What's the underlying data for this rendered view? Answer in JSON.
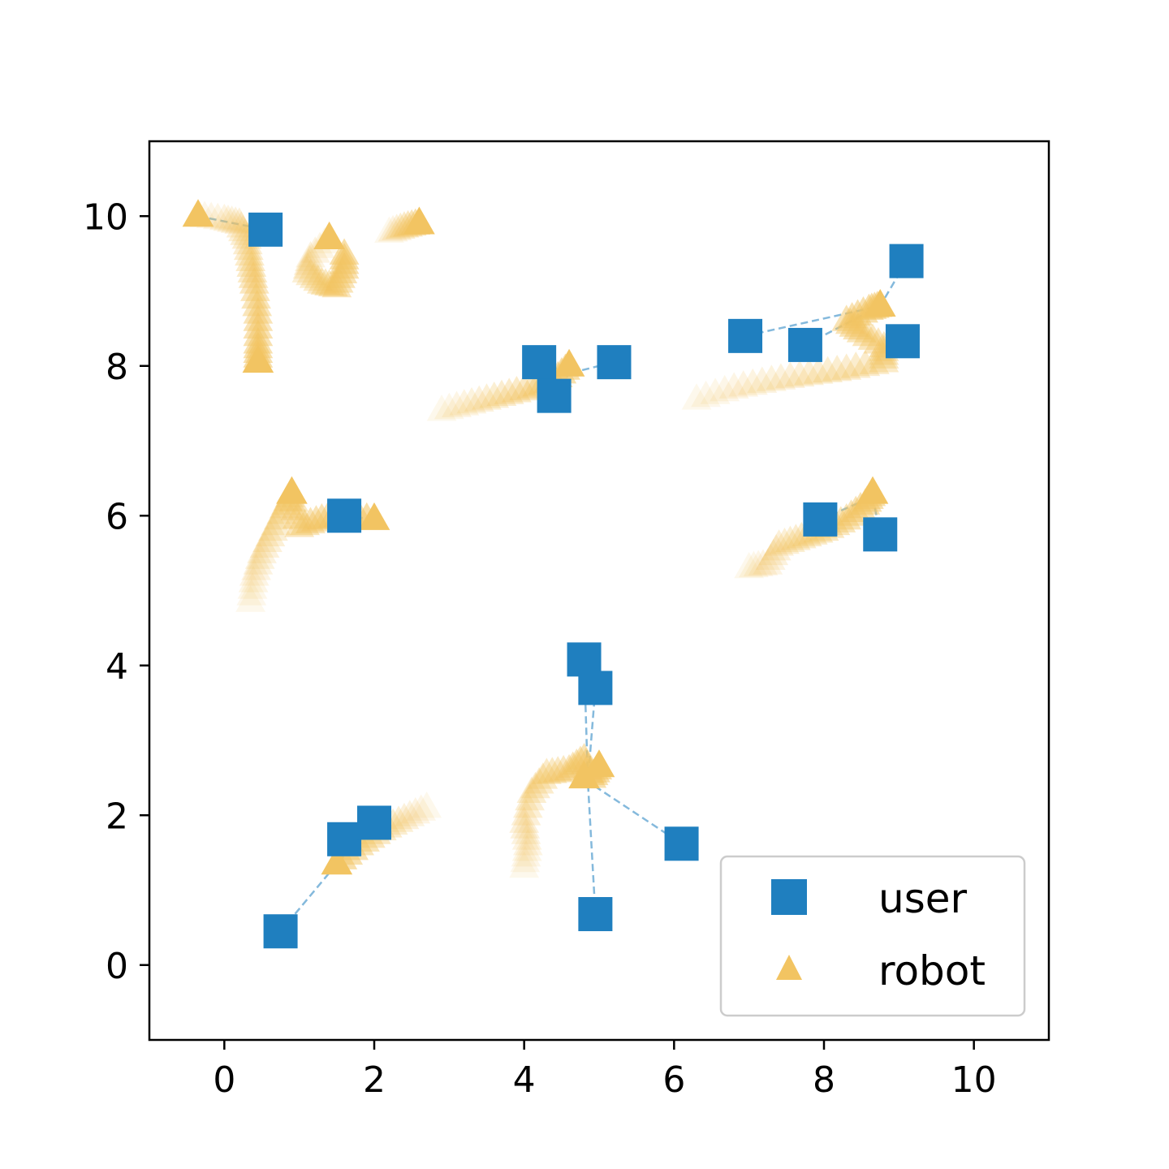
{
  "chart_data": {
    "type": "scatter",
    "title": "",
    "xlabel": "",
    "ylabel": "",
    "xlim": [
      -1,
      11
    ],
    "ylim": [
      -1,
      11
    ],
    "xticks": [
      0,
      2,
      4,
      6,
      8,
      10
    ],
    "yticks": [
      0,
      2,
      4,
      6,
      8,
      10
    ],
    "grid": false,
    "legend_position": "lower-right",
    "colors": {
      "user": "#1f7fbf",
      "robot": "#f2c462",
      "link": "#1f7fbf"
    },
    "series": [
      {
        "name": "user",
        "marker": "square",
        "points": [
          [
            0.55,
            9.82
          ],
          [
            9.1,
            9.4
          ],
          [
            6.95,
            8.4
          ],
          [
            7.75,
            8.28
          ],
          [
            9.05,
            8.33
          ],
          [
            4.2,
            8.05
          ],
          [
            4.4,
            7.6
          ],
          [
            5.2,
            8.05
          ],
          [
            1.6,
            6.0
          ],
          [
            7.95,
            5.95
          ],
          [
            8.75,
            5.75
          ],
          [
            4.8,
            4.08
          ],
          [
            4.95,
            3.7
          ],
          [
            1.6,
            1.68
          ],
          [
            2.0,
            1.9
          ],
          [
            0.75,
            0.45
          ],
          [
            6.1,
            1.62
          ],
          [
            4.95,
            0.68
          ]
        ]
      },
      {
        "name": "robot",
        "marker": "triangle",
        "points": [
          [
            -0.35,
            10.0
          ],
          [
            0.45,
            8.05
          ],
          [
            1.4,
            9.7
          ],
          [
            2.6,
            9.9
          ],
          [
            4.6,
            8.0
          ],
          [
            8.75,
            8.8
          ],
          [
            0.9,
            6.3
          ],
          [
            2.0,
            5.95
          ],
          [
            8.65,
            6.3
          ],
          [
            4.8,
            2.5
          ],
          [
            5.0,
            2.65
          ],
          [
            1.5,
            1.35
          ]
        ],
        "trails": [
          [
            [
              -0.35,
              10.0
            ],
            [
              0.0,
              9.95
            ],
            [
              0.2,
              9.9
            ],
            [
              0.3,
              9.7
            ],
            [
              0.35,
              9.4
            ],
            [
              0.4,
              9.1
            ],
            [
              0.45,
              8.7
            ],
            [
              0.45,
              8.3
            ],
            [
              0.45,
              8.05
            ]
          ],
          [
            [
              1.4,
              9.7
            ],
            [
              1.15,
              9.45
            ],
            [
              1.1,
              9.25
            ],
            [
              1.3,
              9.1
            ],
            [
              1.5,
              9.05
            ],
            [
              1.6,
              9.3
            ],
            [
              1.6,
              9.55
            ]
          ],
          [
            [
              2.2,
              9.78
            ],
            [
              2.4,
              9.85
            ],
            [
              2.6,
              9.9
            ]
          ],
          [
            [
              2.9,
              7.4
            ],
            [
              3.3,
              7.5
            ],
            [
              3.7,
              7.6
            ],
            [
              4.1,
              7.7
            ],
            [
              4.4,
              7.8
            ],
            [
              4.6,
              8.0
            ]
          ],
          [
            [
              6.3,
              7.55
            ],
            [
              6.8,
              7.7
            ],
            [
              7.3,
              7.8
            ],
            [
              7.8,
              7.88
            ],
            [
              8.3,
              7.95
            ],
            [
              8.8,
              8.05
            ],
            [
              8.8,
              8.25
            ],
            [
              8.5,
              8.45
            ],
            [
              8.3,
              8.6
            ],
            [
              8.6,
              8.75
            ],
            [
              8.75,
              8.8
            ]
          ],
          [
            [
              0.35,
              4.85
            ],
            [
              0.4,
              5.2
            ],
            [
              0.5,
              5.5
            ],
            [
              0.65,
              5.8
            ],
            [
              0.8,
              6.1
            ],
            [
              0.9,
              6.3
            ],
            [
              1.0,
              5.85
            ],
            [
              1.3,
              5.95
            ],
            [
              1.6,
              6.0
            ],
            [
              2.0,
              5.95
            ]
          ],
          [
            [
              7.0,
              5.3
            ],
            [
              7.25,
              5.35
            ],
            [
              7.4,
              5.6
            ],
            [
              7.7,
              5.7
            ],
            [
              8.0,
              5.8
            ],
            [
              8.3,
              5.95
            ],
            [
              8.55,
              6.15
            ],
            [
              8.65,
              6.3
            ]
          ],
          [
            [
              4.0,
              1.3
            ],
            [
              4.05,
              1.6
            ],
            [
              4.0,
              1.9
            ],
            [
              4.1,
              2.3
            ],
            [
              4.3,
              2.55
            ],
            [
              4.6,
              2.6
            ],
            [
              4.8,
              2.75
            ],
            [
              4.9,
              2.5
            ],
            [
              5.0,
              2.65
            ]
          ],
          [
            [
              2.7,
              2.1
            ],
            [
              2.4,
              1.95
            ],
            [
              2.1,
              1.8
            ],
            [
              1.8,
              1.6
            ],
            [
              1.5,
              1.35
            ]
          ]
        ]
      }
    ],
    "links": [
      [
        [
          -0.35,
          10.0
        ],
        [
          0.55,
          9.82
        ]
      ],
      [
        [
          6.95,
          8.4
        ],
        [
          8.75,
          8.8
        ],
        [
          9.1,
          9.4
        ]
      ],
      [
        [
          7.75,
          8.28
        ],
        [
          8.75,
          8.8
        ]
      ],
      [
        [
          4.2,
          8.05
        ],
        [
          4.6,
          7.9
        ],
        [
          5.2,
          8.05
        ]
      ],
      [
        [
          4.4,
          7.6
        ],
        [
          4.6,
          7.9
        ]
      ],
      [
        [
          1.6,
          6.0
        ],
        [
          2.0,
          5.95
        ]
      ],
      [
        [
          7.95,
          5.95
        ],
        [
          8.65,
          6.25
        ],
        [
          8.75,
          5.75
        ]
      ],
      [
        [
          4.8,
          4.08
        ],
        [
          4.85,
          2.45
        ],
        [
          4.95,
          0.68
        ]
      ],
      [
        [
          4.95,
          3.7
        ],
        [
          4.85,
          2.45
        ],
        [
          6.1,
          1.62
        ]
      ],
      [
        [
          0.75,
          0.45
        ],
        [
          1.5,
          1.35
        ],
        [
          1.6,
          1.68
        ]
      ],
      [
        [
          2.0,
          1.9
        ],
        [
          1.5,
          1.35
        ]
      ]
    ]
  }
}
